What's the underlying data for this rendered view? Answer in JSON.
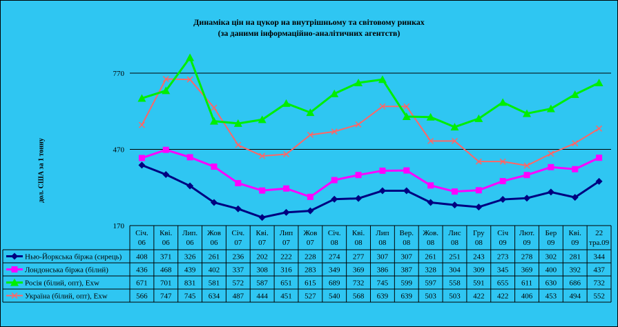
{
  "chart_data": {
    "type": "line",
    "title": "Динаміка цін на цукор на внутрішньому та світовому ринках",
    "subtitle": "(за даними інформаційно-аналітичних агентств)",
    "ylabel": "дол. США за 1 тонну",
    "ylim": [
      170,
      770
    ],
    "yticks": [
      "170",
      "470",
      "770"
    ],
    "categories": [
      "Січ. 06",
      "Кві. 06",
      "Лип. 06",
      "Жов 06",
      "Січ. 07",
      "Кві. 07",
      "Лип 07",
      "Жов 07",
      "Січ. 08",
      "Кві. 08",
      "Лип 08",
      "Вер. 08",
      "Жов. 08",
      "Лис 08",
      "Гру 08",
      "Січ 09",
      "Лют. 09",
      "Бер 09",
      "Кві. 09",
      "22 тра.09"
    ],
    "grid": "horizontal",
    "legend": "data-table",
    "series": [
      {
        "name": "Нью-Йоркська біржа (сирець)",
        "color": "#000080",
        "marker": "diamond",
        "values": [
          408,
          371,
          326,
          261,
          236,
          202,
          222,
          228,
          274,
          277,
          307,
          307,
          261,
          251,
          243,
          273,
          278,
          302,
          281,
          344
        ]
      },
      {
        "name": "Лондонська біржа (білий)",
        "color": "#ff00ff",
        "marker": "square",
        "values": [
          436,
          468,
          439,
          402,
          337,
          308,
          316,
          283,
          349,
          369,
          386,
          387,
          328,
          304,
          309,
          345,
          369,
          400,
          392,
          437
        ]
      },
      {
        "name": "Росія (білий, опт), Exw",
        "color": "#00ee00",
        "marker": "triangle",
        "values": [
          671,
          701,
          831,
          581,
          572,
          587,
          651,
          615,
          689,
          732,
          745,
          599,
          597,
          558,
          591,
          655,
          611,
          630,
          686,
          732
        ]
      },
      {
        "name": "Україна (білий, опт), Exw",
        "color": "#ff6666",
        "marker": "x",
        "values": [
          566,
          747,
          745,
          634,
          487,
          444,
          451,
          527,
          540,
          568,
          639,
          639,
          503,
          503,
          422,
          422,
          406,
          453,
          494,
          552
        ]
      }
    ]
  }
}
